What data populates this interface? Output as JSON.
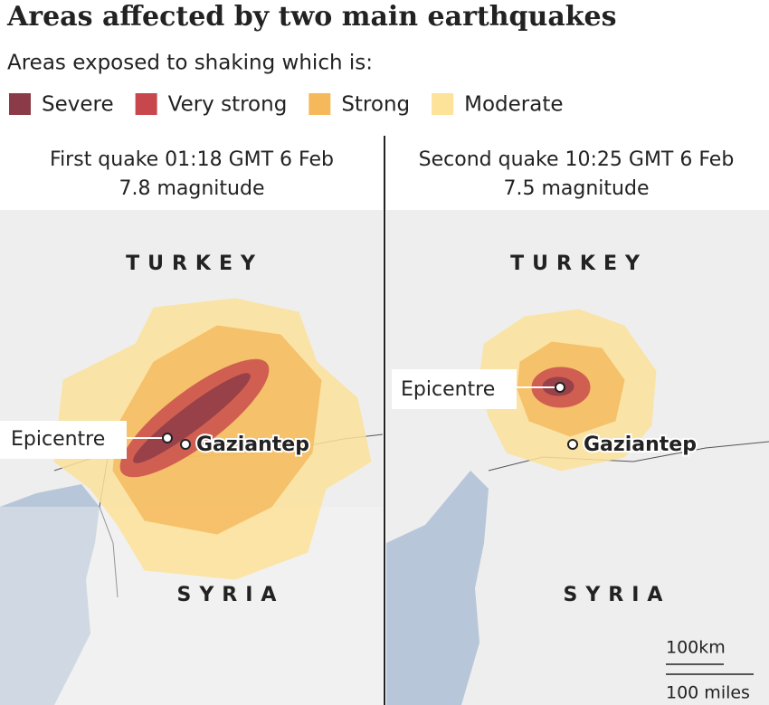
{
  "title": "Areas affected by two main earthquakes",
  "subtitle": "Areas exposed to shaking which is:",
  "legend": [
    {
      "label": "Severe",
      "color": "#8b3a47"
    },
    {
      "label": "Very strong",
      "color": "#c8474d"
    },
    {
      "label": "Strong",
      "color": "#f5b95c"
    },
    {
      "label": "Moderate",
      "color": "#fde29a"
    }
  ],
  "panels": [
    {
      "heading": "First quake 01:18 GMT 6 Feb",
      "magnitude": "7.8 magnitude",
      "country_top": "TURKEY",
      "country_bottom": "SYRIA",
      "epicentre": "Epicentre",
      "city": "Gaziantep"
    },
    {
      "heading": "Second quake 10:25 GMT 6 Feb",
      "magnitude": "7.5 magnitude",
      "country_top": "TURKEY",
      "country_bottom": "SYRIA",
      "epicentre": "Epicentre",
      "city": "Gaziantep"
    }
  ],
  "scale": {
    "km": "100km",
    "miles": "100 miles"
  }
}
